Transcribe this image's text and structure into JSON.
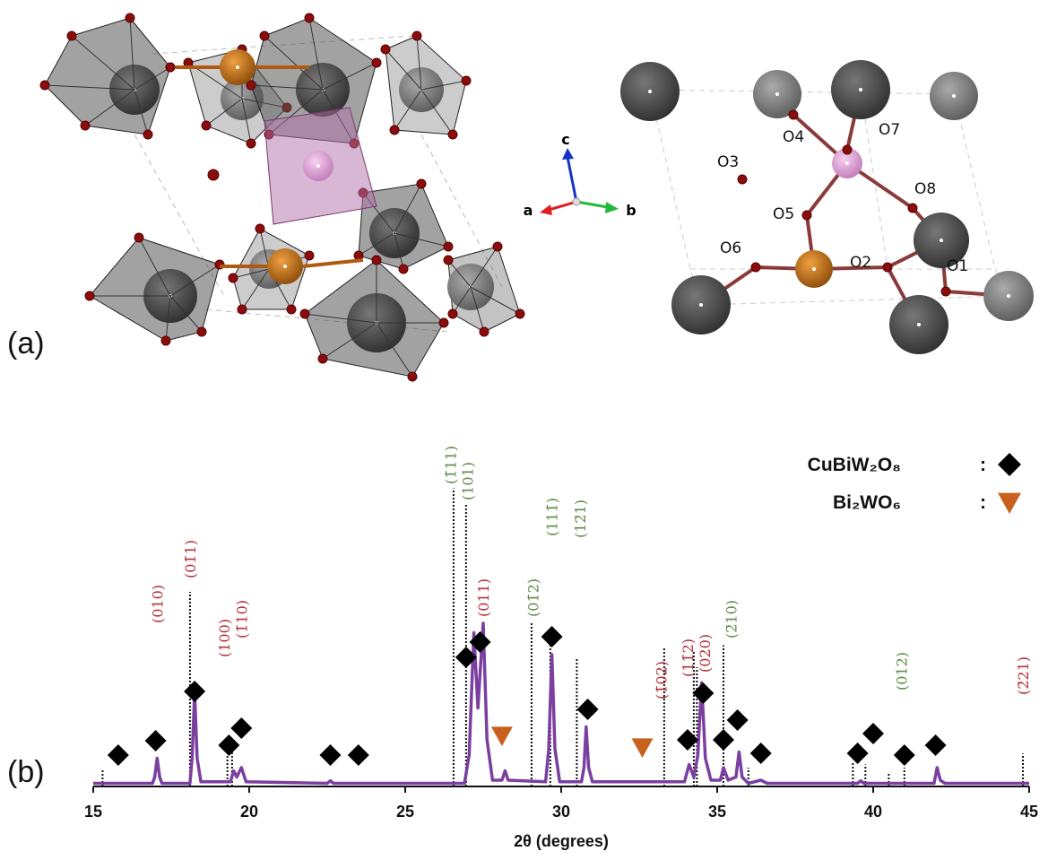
{
  "panels": {
    "a": {
      "label": "(a)",
      "axes": {
        "a": "a",
        "b": "b",
        "c": "c"
      },
      "atoms": [
        "O1",
        "O2",
        "O3",
        "O4",
        "O5",
        "O6",
        "O7",
        "O8"
      ]
    },
    "b": {
      "label": "(b)"
    }
  },
  "chart_data": {
    "type": "line",
    "x_label": "2θ (degrees)",
    "xlim": [
      15,
      45
    ],
    "xticks": [
      15,
      20,
      25,
      30,
      35,
      40,
      45
    ],
    "ylim": [
      0,
      100
    ],
    "color": "#7b3fa0",
    "x": [
      15,
      16.9,
      16.97,
      17.05,
      17.13,
      17.2,
      18.1,
      18.17,
      18.25,
      18.33,
      18.45,
      19.4,
      19.5,
      19.6,
      19.75,
      19.9,
      22.5,
      22.6,
      22.7,
      26.9,
      27.05,
      27.2,
      27.33,
      27.5,
      27.62,
      27.8,
      28.1,
      28.2,
      28.3,
      29.5,
      29.6,
      29.7,
      29.8,
      29.95,
      30.65,
      30.73,
      30.8,
      30.88,
      31.0,
      33.95,
      34.1,
      34.25,
      34.38,
      34.5,
      34.62,
      34.8,
      35.1,
      35.2,
      35.35,
      35.6,
      35.7,
      35.8,
      36.0,
      36.4,
      36.6,
      39.5,
      39.6,
      39.7,
      41.95,
      42.05,
      42.15,
      42.3,
      45
    ],
    "values": [
      1,
      1,
      3,
      9,
      3,
      1,
      1,
      9,
      30,
      9,
      1.5,
      1.5,
      5,
      3,
      6,
      1.5,
      1,
      1.8,
      1,
      1,
      10,
      49,
      25,
      52,
      15,
      2,
      2,
      5,
      2,
      1.5,
      12,
      42,
      12,
      1.5,
      1.5,
      6,
      19,
      6,
      1.5,
      1.5,
      7,
      3,
      10,
      33,
      9,
      2,
      2,
      6,
      2,
      3,
      11,
      3,
      1,
      2,
      1,
      1,
      1.8,
      1,
      1,
      6,
      2,
      1,
      1
    ],
    "reference_lines": {
      "x": [
        15.3,
        18.1,
        19.3,
        19.45,
        26.55,
        26.95,
        29.05,
        29.65,
        30.5,
        33.3,
        34.25,
        34.35,
        35.2,
        36.0,
        39.35,
        39.75,
        40.5,
        41.0,
        44.8
      ],
      "values": [
        5.4,
        62,
        10,
        12.5,
        95,
        90,
        52.5,
        50,
        41,
        44,
        43,
        38,
        45,
        6,
        8,
        7,
        4,
        6,
        10.5
      ]
    },
    "peak_labels": [
      {
        "text": "(010)",
        "x": 17.05,
        "color": "#b5303a"
      },
      {
        "text": "(01̄1)",
        "x": 18.1,
        "color": "#b5303a"
      },
      {
        "text": "(100)",
        "x": 19.2,
        "color": "#b5303a"
      },
      {
        "text": "(1̄10)",
        "x": 19.75,
        "color": "#b5303a"
      },
      {
        "text": "(1̄11)",
        "x": 26.45,
        "color": "#5f8a4a"
      },
      {
        "text": "(101)",
        "x": 27.0,
        "color": "#5f8a4a"
      },
      {
        "text": "(011)",
        "x": 27.5,
        "color": "#b5303a"
      },
      {
        "text": "(01̄2)",
        "x": 29.1,
        "color": "#5f8a4a"
      },
      {
        "text": "(111̄)",
        "x": 29.7,
        "color": "#5f8a4a"
      },
      {
        "text": "(12̄1)",
        "x": 30.6,
        "color": "#5f8a4a"
      },
      {
        "text": "(1̄02)",
        "x": 33.2,
        "color": "#b5303a"
      },
      {
        "text": "(11̄2)",
        "x": 34.05,
        "color": "#b5303a"
      },
      {
        "text": "(020)",
        "x": 34.6,
        "color": "#b5303a"
      },
      {
        "text": "(2̄10)",
        "x": 35.45,
        "color": "#5f8a4a"
      },
      {
        "text": "(012)",
        "x": 40.9,
        "color": "#5f8a4a"
      },
      {
        "text": "(2̄21)",
        "x": 44.8,
        "color": "#b5303a"
      }
    ],
    "markers": [
      {
        "phase": "CuBiW₂O₈",
        "shape": "diamond",
        "color": "#000000",
        "x": [
          15.8,
          17.0,
          18.25,
          19.35,
          19.75,
          22.6,
          23.5,
          26.95,
          27.4,
          29.7,
          30.85,
          34.05,
          34.55,
          35.2,
          35.65,
          36.4,
          39.5,
          40.0,
          41.0,
          42.0
        ]
      },
      {
        "phase": "Bi₂WO₆",
        "shape": "triangle",
        "color": "#c8611e",
        "x": [
          28.1,
          32.6
        ]
      }
    ],
    "legend_separator": ":"
  }
}
